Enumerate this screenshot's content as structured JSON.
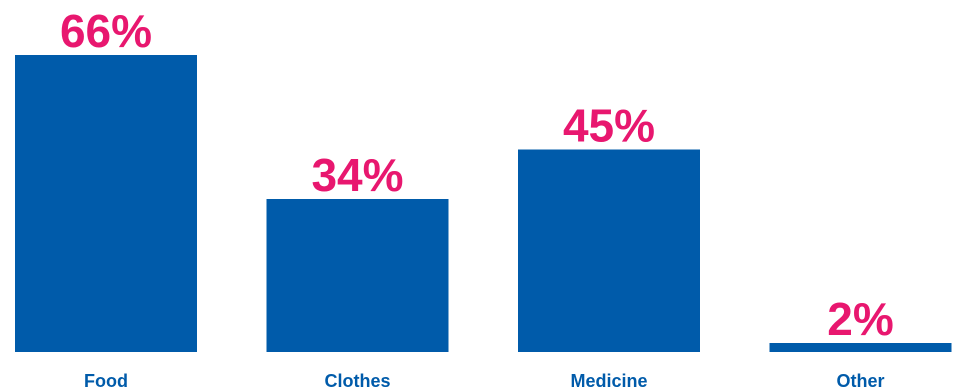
{
  "chart_data": {
    "type": "bar",
    "categories": [
      "Food",
      "Clothes",
      "Medicine",
      "Other"
    ],
    "values": [
      66,
      34,
      45,
      2
    ],
    "value_labels": [
      "66%",
      "34%",
      "45%",
      "2%"
    ],
    "title": "",
    "xlabel": "",
    "ylabel": "",
    "ylim": [
      0,
      66
    ],
    "grid": false,
    "legend": "none"
  },
  "colors": {
    "bar": "#005BAA",
    "value_label": "#E8176F",
    "category_label": "#005BAA",
    "background": "#FFFFFF"
  }
}
